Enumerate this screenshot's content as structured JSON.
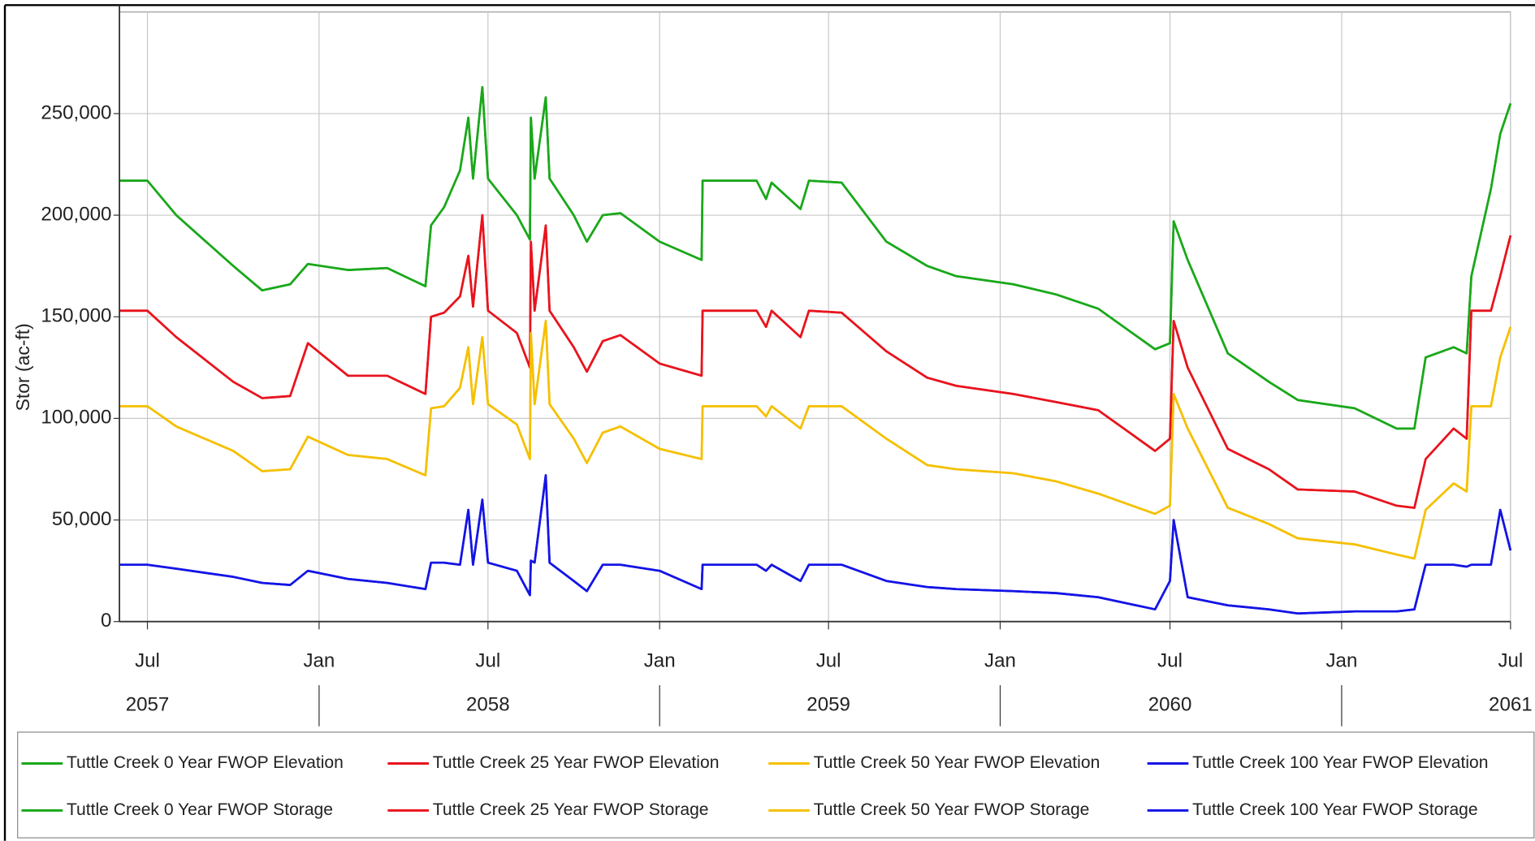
{
  "chart_data": {
    "type": "line",
    "y_label": "Stor (ac-ft)",
    "x": [
      "2057-06-01",
      "2057-07-01",
      "2057-08-01",
      "2057-10-01",
      "2057-11-01",
      "2057-12-01",
      "2057-12-20",
      "2058-02-01",
      "2058-03-15",
      "2058-04-25",
      "2058-05-01",
      "2058-05-15",
      "2058-06-01",
      "2058-06-10",
      "2058-06-15",
      "2058-06-25",
      "2058-07-01",
      "2058-08-01",
      "2058-08-15",
      "2058-08-16",
      "2058-08-20",
      "2058-09-01",
      "2058-09-05",
      "2058-10-01",
      "2058-10-15",
      "2058-11-01",
      "2058-11-20",
      "2059-01-01",
      "2059-02-15",
      "2059-02-16",
      "2059-04-15",
      "2059-04-25",
      "2059-05-01",
      "2059-06-01",
      "2059-06-10",
      "2059-07-15",
      "2059-09-01",
      "2059-10-15",
      "2059-11-15",
      "2060-01-15",
      "2060-03-01",
      "2060-04-15",
      "2060-06-15",
      "2060-07-01",
      "2060-07-05",
      "2060-07-20",
      "2060-09-01",
      "2060-10-15",
      "2060-11-15",
      "2061-01-15",
      "2061-03-01",
      "2061-03-20",
      "2061-04-01",
      "2061-05-01",
      "2061-05-15",
      "2061-05-20",
      "2061-06-10",
      "2061-06-20",
      "2061-07-01"
    ],
    "series": [
      {
        "name": "Tuttle Creek 0 Year FWOP Elevation",
        "color": "#1aa81a",
        "values": [
          217000,
          217000,
          200000,
          175000,
          163000,
          166000,
          176000,
          173000,
          174000,
          165000,
          195000,
          204000,
          222000,
          248000,
          218000,
          263000,
          218000,
          200000,
          188000,
          248000,
          218000,
          258000,
          218000,
          200000,
          187000,
          200000,
          201000,
          187000,
          178000,
          217000,
          217000,
          208000,
          216000,
          203000,
          217000,
          216000,
          187000,
          175000,
          170000,
          166000,
          161000,
          154000,
          134000,
          137000,
          197000,
          178000,
          132000,
          118000,
          109000,
          105000,
          95000,
          95000,
          130000,
          135000,
          132000,
          170000,
          213000,
          240000,
          255000
        ]
      },
      {
        "name": "Tuttle Creek 25 Year FWOP Elevation",
        "color": "#e8141e",
        "values": [
          153000,
          153000,
          140000,
          118000,
          110000,
          111000,
          137000,
          121000,
          121000,
          112000,
          150000,
          152000,
          160000,
          180000,
          155000,
          200000,
          153000,
          142000,
          125000,
          187000,
          153000,
          195000,
          153000,
          135000,
          123000,
          138000,
          141000,
          127000,
          121000,
          153000,
          153000,
          145000,
          153000,
          140000,
          153000,
          152000,
          133000,
          120000,
          116000,
          112000,
          108000,
          104000,
          84000,
          90000,
          148000,
          125000,
          85000,
          75000,
          65000,
          64000,
          57000,
          56000,
          80000,
          95000,
          90000,
          153000,
          153000,
          170000,
          190000
        ]
      },
      {
        "name": "Tuttle Creek 50 Year FWOP Elevation",
        "color": "#f5c000",
        "values": [
          106000,
          106000,
          96000,
          84000,
          74000,
          75000,
          91000,
          82000,
          80000,
          72000,
          105000,
          106000,
          115000,
          135000,
          107000,
          140000,
          107000,
          97000,
          80000,
          142000,
          107000,
          148000,
          107000,
          90000,
          78000,
          93000,
          96000,
          85000,
          80000,
          106000,
          106000,
          101000,
          106000,
          95000,
          106000,
          106000,
          90000,
          77000,
          75000,
          73000,
          69000,
          63000,
          53000,
          57000,
          112000,
          95000,
          56000,
          48000,
          41000,
          38000,
          33000,
          31000,
          55000,
          68000,
          64000,
          106000,
          106000,
          130000,
          145000
        ]
      },
      {
        "name": "Tuttle Creek 100 Year FWOP Elevation",
        "color": "#1414e6",
        "values": [
          28000,
          28000,
          26000,
          22000,
          19000,
          18000,
          25000,
          21000,
          19000,
          16000,
          29000,
          29000,
          28000,
          55000,
          28000,
          60000,
          29000,
          25000,
          13000,
          30000,
          29000,
          72000,
          29000,
          20000,
          15000,
          28000,
          28000,
          25000,
          16000,
          28000,
          28000,
          25000,
          28000,
          20000,
          28000,
          28000,
          20000,
          17000,
          16000,
          15000,
          14000,
          12000,
          6000,
          20000,
          50000,
          12000,
          8000,
          6000,
          4000,
          5000,
          5000,
          6000,
          28000,
          28000,
          27000,
          28000,
          28000,
          55000,
          35000
        ]
      },
      {
        "name": "Tuttle Creek 0 Year FWOP Storage",
        "color": "#1aa81a",
        "values": [
          217000,
          217000,
          200000,
          175000,
          163000,
          166000,
          176000,
          173000,
          174000,
          165000,
          195000,
          204000,
          222000,
          248000,
          218000,
          263000,
          218000,
          200000,
          188000,
          248000,
          218000,
          258000,
          218000,
          200000,
          187000,
          200000,
          201000,
          187000,
          178000,
          217000,
          217000,
          208000,
          216000,
          203000,
          217000,
          216000,
          187000,
          175000,
          170000,
          166000,
          161000,
          154000,
          134000,
          137000,
          197000,
          178000,
          132000,
          118000,
          109000,
          105000,
          95000,
          95000,
          130000,
          135000,
          132000,
          170000,
          213000,
          240000,
          255000
        ]
      },
      {
        "name": "Tuttle Creek 25 Year FWOP Storage",
        "color": "#e8141e",
        "values": [
          153000,
          153000,
          140000,
          118000,
          110000,
          111000,
          137000,
          121000,
          121000,
          112000,
          150000,
          152000,
          160000,
          180000,
          155000,
          200000,
          153000,
          142000,
          125000,
          187000,
          153000,
          195000,
          153000,
          135000,
          123000,
          138000,
          141000,
          127000,
          121000,
          153000,
          153000,
          145000,
          153000,
          140000,
          153000,
          152000,
          133000,
          120000,
          116000,
          112000,
          108000,
          104000,
          84000,
          90000,
          148000,
          125000,
          85000,
          75000,
          65000,
          64000,
          57000,
          56000,
          80000,
          95000,
          90000,
          153000,
          153000,
          170000,
          190000
        ]
      },
      {
        "name": "Tuttle Creek 50 Year FWOP Storage",
        "color": "#f5c000",
        "values": [
          106000,
          106000,
          96000,
          84000,
          74000,
          75000,
          91000,
          82000,
          80000,
          72000,
          105000,
          106000,
          115000,
          135000,
          107000,
          140000,
          107000,
          97000,
          80000,
          142000,
          107000,
          148000,
          107000,
          90000,
          78000,
          93000,
          96000,
          85000,
          80000,
          106000,
          106000,
          101000,
          106000,
          95000,
          106000,
          106000,
          90000,
          77000,
          75000,
          73000,
          69000,
          63000,
          53000,
          57000,
          112000,
          95000,
          56000,
          48000,
          41000,
          38000,
          33000,
          31000,
          55000,
          68000,
          64000,
          106000,
          106000,
          130000,
          145000
        ]
      },
      {
        "name": "Tuttle Creek 100 Year FWOP Storage",
        "color": "#1414e6",
        "values": [
          28000,
          28000,
          26000,
          22000,
          19000,
          18000,
          25000,
          21000,
          19000,
          16000,
          29000,
          29000,
          28000,
          55000,
          28000,
          60000,
          29000,
          25000,
          13000,
          30000,
          29000,
          72000,
          29000,
          20000,
          15000,
          28000,
          28000,
          25000,
          16000,
          28000,
          28000,
          25000,
          28000,
          20000,
          28000,
          28000,
          20000,
          17000,
          16000,
          15000,
          14000,
          12000,
          6000,
          20000,
          50000,
          12000,
          8000,
          6000,
          4000,
          5000,
          5000,
          6000,
          28000,
          28000,
          27000,
          28000,
          28000,
          55000,
          35000
        ]
      }
    ],
    "xlim": [
      "2057-06-01",
      "2061-07-01"
    ],
    "xticks": [
      {
        "value": "2057-07-01",
        "label": "Jul"
      },
      {
        "value": "2058-01-01",
        "label": "Jan"
      },
      {
        "value": "2058-07-01",
        "label": "Jul"
      },
      {
        "value": "2059-01-01",
        "label": "Jan"
      },
      {
        "value": "2059-07-01",
        "label": "Jul"
      },
      {
        "value": "2060-01-01",
        "label": "Jan"
      },
      {
        "value": "2060-07-01",
        "label": "Jul"
      },
      {
        "value": "2061-01-01",
        "label": "Jan"
      },
      {
        "value": "2061-07-01",
        "label": "Jul"
      }
    ],
    "year_labels": [
      {
        "value": "2057-07-01",
        "label": "2057"
      },
      {
        "value": "2058-07-01",
        "label": "2058"
      },
      {
        "value": "2059-07-01",
        "label": "2059"
      },
      {
        "value": "2060-07-01",
        "label": "2060"
      },
      {
        "value": "2061-07-01",
        "label": "2061"
      }
    ],
    "ylim": [
      0,
      300000
    ],
    "yticks": [
      0,
      {
        "value": 50000,
        "label": "50,000"
      },
      {
        "value": 100000,
        "label": "100,000"
      },
      {
        "value": 150000,
        "label": "150,000"
      },
      {
        "value": 200000,
        "label": "200,000"
      },
      {
        "value": 250000,
        "label": "250,000"
      }
    ],
    "grid": true,
    "legend": "bottom"
  }
}
